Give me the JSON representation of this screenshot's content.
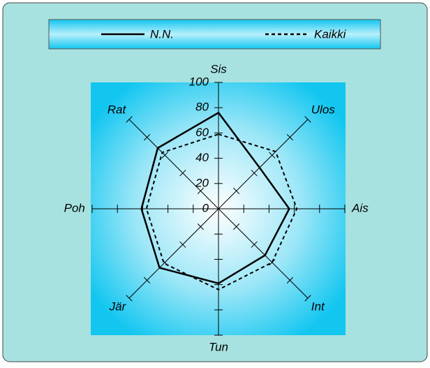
{
  "chart_data": {
    "type": "radar",
    "categories": [
      "Sis",
      "Ulos",
      "Ais",
      "Int",
      "Tun",
      "Jär",
      "Poh",
      "Rat"
    ],
    "series": [
      {
        "name": "N.N.",
        "color": "#000000",
        "linestyle": "solid",
        "values": [
          76,
          46,
          56,
          52,
          59,
          66,
          61,
          68
        ]
      },
      {
        "name": "Kaikki",
        "color": "#000000",
        "linestyle": "dashed",
        "values": [
          59,
          64,
          62,
          60,
          64,
          61,
          57,
          63
        ]
      }
    ],
    "ylim": [
      0,
      100
    ],
    "yticks": [
      0,
      20,
      40,
      60,
      80,
      100
    ]
  }
}
